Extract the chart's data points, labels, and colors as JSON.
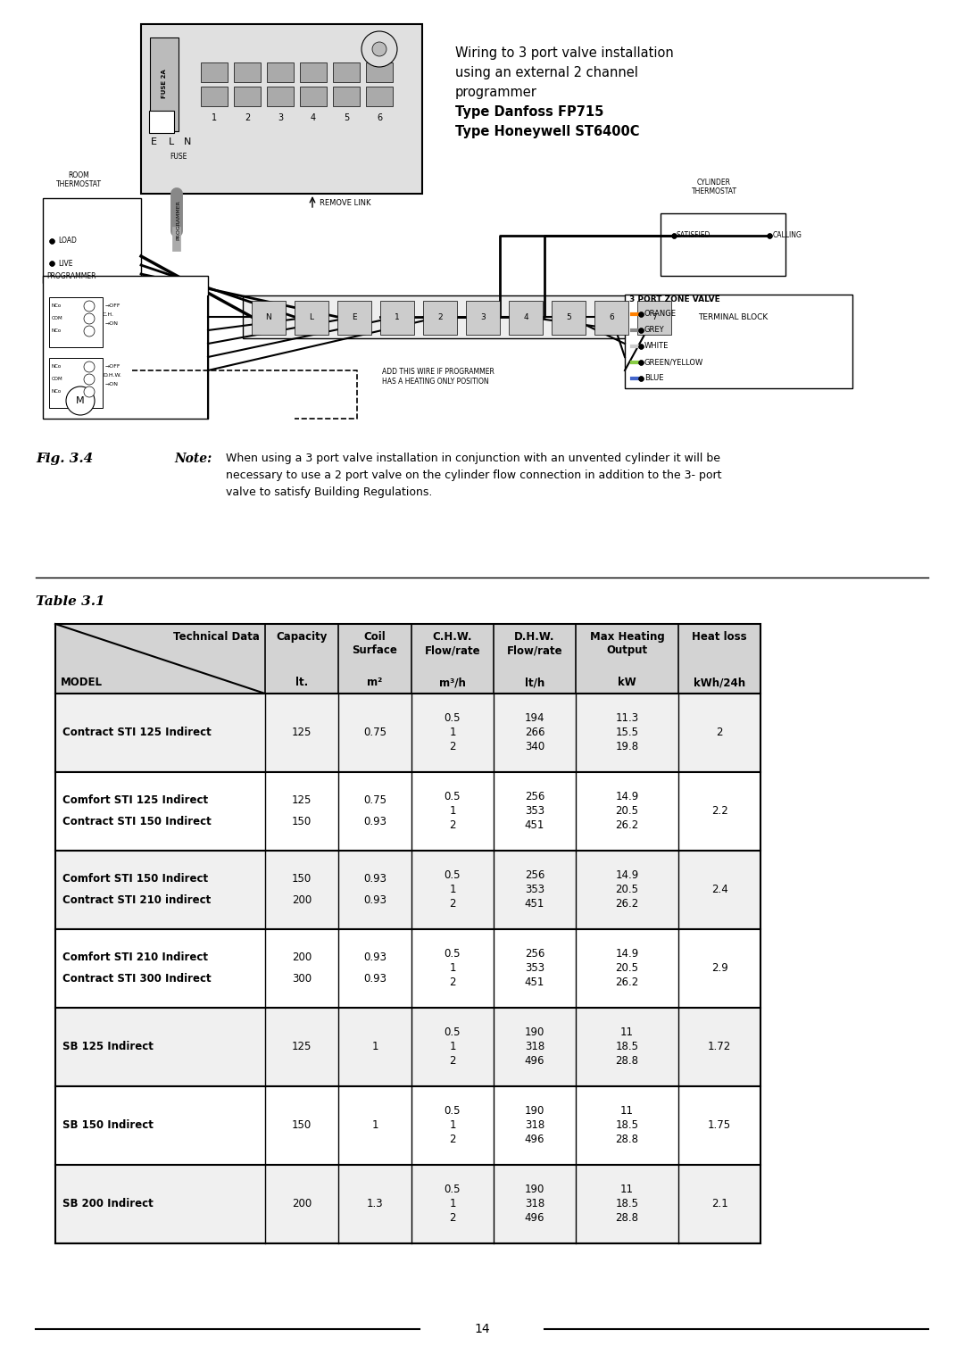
{
  "page_bg": "#ffffff",
  "fig_label": "Fig. 3.4",
  "note_label": "Note:",
  "note_text": "When using a 3 port valve installation in conjunction with an unvented cylinder it will be\nnecessary to use a 2 port valve on the cylinder flow connection in addition to the 3- port\nvalve to satisfy Building Regulations.",
  "wiring_title_lines": [
    {
      "text": "Wiring to 3 port valve installation",
      "bold": false
    },
    {
      "text": "using an external 2 channel",
      "bold": false
    },
    {
      "text": "programmer",
      "bold": false
    },
    {
      "text": "Type Danfoss FP715",
      "bold": true
    },
    {
      "text": "Type Honeywell ST6400C",
      "bold": true
    }
  ],
  "table_label": "Table 3.1",
  "page_number": "14",
  "header_bg": "#d3d3d3",
  "row_bg_odd": "#f0f0f0",
  "row_bg_even": "#ffffff",
  "border_color": "#000000",
  "table_rows": [
    {
      "model": "Contract STI 125 Indirect",
      "capacity": "125",
      "coil": "0.75",
      "chw": "0.5\n1\n2",
      "dhw": "194\n266\n340",
      "max_heat": "11.3\n15.5\n19.8",
      "heat_loss": "2"
    },
    {
      "model": "Comfort STI 125 Indirect\nContract STI 150 Indirect",
      "capacity": "125\n150",
      "coil": "0.75\n0.93",
      "chw": "0.5\n1\n2",
      "dhw": "256\n353\n451",
      "max_heat": "14.9\n20.5\n26.2",
      "heat_loss": "2.2"
    },
    {
      "model": "Comfort STI 150 Indirect\nContract STI 210 indirect",
      "capacity": "150\n200",
      "coil": "0.93\n0.93",
      "chw": "0.5\n1\n2",
      "dhw": "256\n353\n451",
      "max_heat": "14.9\n20.5\n26.2",
      "heat_loss": "2.4"
    },
    {
      "model": "Comfort STI 210 Indirect\nContract STI 300 Indirect",
      "capacity": "200\n300",
      "coil": "0.93\n0.93",
      "chw": "0.5\n1\n2",
      "dhw": "256\n353\n451",
      "max_heat": "14.9\n20.5\n26.2",
      "heat_loss": "2.9"
    },
    {
      "model": "SB 125 Indirect",
      "capacity": "125",
      "coil": "1",
      "chw": "0.5\n1\n2",
      "dhw": "190\n318\n496",
      "max_heat": "11\n18.5\n28.8",
      "heat_loss": "1.72"
    },
    {
      "model": "SB 150 Indirect",
      "capacity": "150",
      "coil": "1",
      "chw": "0.5\n1\n2",
      "dhw": "190\n318\n496",
      "max_heat": "11\n18.5\n28.8",
      "heat_loss": "1.75"
    },
    {
      "model": "SB 200 Indirect",
      "capacity": "200",
      "coil": "1.3",
      "chw": "0.5\n1\n2",
      "dhw": "190\n318\n496",
      "max_heat": "11\n18.5\n28.8",
      "heat_loss": "2.1"
    }
  ]
}
